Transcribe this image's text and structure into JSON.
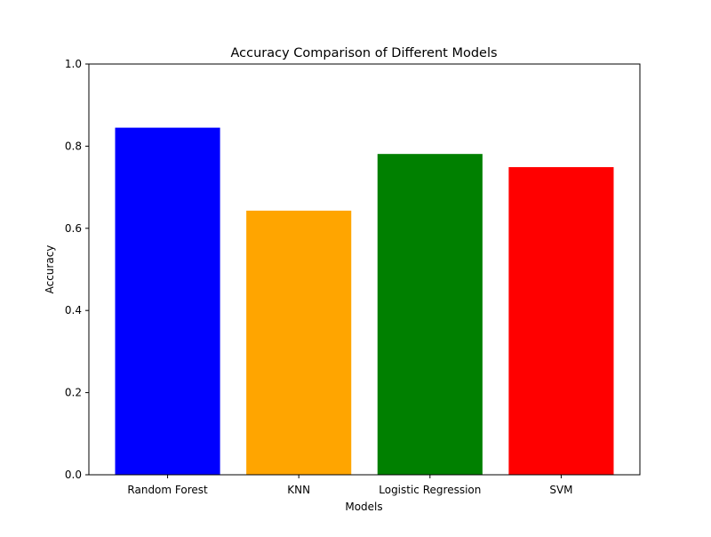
{
  "chart_data": {
    "type": "bar",
    "title": "Accuracy Comparison of Different Models",
    "xlabel": "Models",
    "ylabel": "Accuracy",
    "categories": [
      "Random Forest",
      "KNN",
      "Logistic Regression",
      "SVM"
    ],
    "values": [
      0.845,
      0.643,
      0.781,
      0.749
    ],
    "colors": [
      "#0000ff",
      "#ffa500",
      "#008000",
      "#ff0000"
    ],
    "ylim": [
      0,
      1.0
    ],
    "yticks": [
      "0.0",
      "0.2",
      "0.4",
      "0.6",
      "0.8",
      "1.0"
    ],
    "grid": false,
    "legend": "none"
  }
}
